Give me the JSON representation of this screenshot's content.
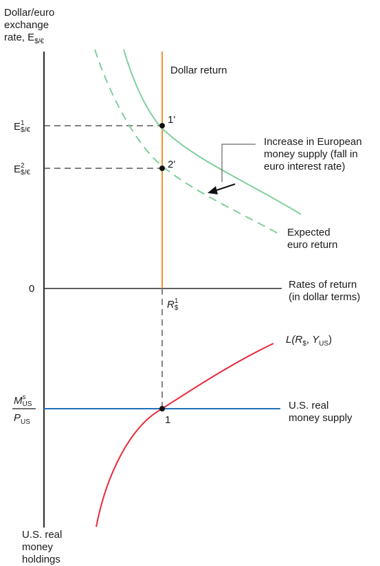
{
  "y_axis_title": "Dollar/euro\nexchange\nrate, E",
  "y_axis_title_sub": "$/€",
  "e1_label": {
    "base": "E",
    "sup": "1",
    "sub": "$/€"
  },
  "e2_label": {
    "base": "E",
    "sup": "2",
    "sub": "$/€"
  },
  "zero_label": "0",
  "point_1prime": "1'",
  "point_2prime": "2'",
  "point_1": "1",
  "dollar_return_label": "Dollar return",
  "annotation": "Increase in European\nmoney supply (fall in\neuro interest rate)",
  "expected_euro_return_label": "Expected\neuro return",
  "x_axis_label": "Rates of return\n(in dollar terms)",
  "r_label": {
    "base": "R",
    "sup": "1",
    "sub": "$"
  },
  "money_demand_label": {
    "l": "L(",
    "r": "R",
    "r_sub": "$",
    "comma": ", ",
    "y": "Y",
    "y_sub": "US",
    "close": ")"
  },
  "money_supply_ratio": {
    "num": "M",
    "num_sup": "s",
    "num_sub": "US",
    "den": "P",
    "den_sub": "US"
  },
  "money_supply_label": "U.S. real\nmoney supply",
  "bottom_axis_label": "U.S. real\nmoney\nholdings",
  "colors": {
    "dollar_return": "#f0922c",
    "expected_euro_return": "#7fcf9c",
    "money_demand": "#e8283a",
    "money_supply": "#1f6fb8",
    "axis": "#2a2a2a"
  }
}
